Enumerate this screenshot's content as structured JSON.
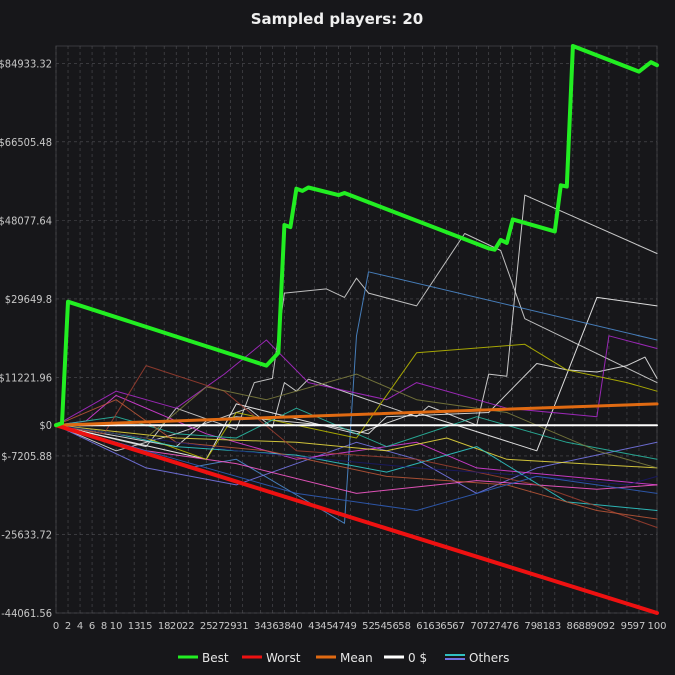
{
  "chart_data": {
    "type": "line",
    "title": "Sampled players: 20",
    "xlabel": "",
    "ylabel": "",
    "xlim": [
      0,
      100
    ],
    "ylim": [
      -44061.56,
      89000
    ],
    "grid": true,
    "legend_position": "bottom",
    "y_ticks": [
      {
        "value": 84933.32,
        "label": "$84933.32"
      },
      {
        "value": 66505.48,
        "label": "$66505.48"
      },
      {
        "value": 48077.64,
        "label": "$48077.64"
      },
      {
        "value": 29649.8,
        "label": "$29649.8"
      },
      {
        "value": 11221.96,
        "label": "$11221.96"
      },
      {
        "value": 0,
        "label": "$0"
      },
      {
        "value": -7205.88,
        "label": "$-7205.88"
      },
      {
        "value": -25633.72,
        "label": "-25633.72"
      },
      {
        "value": -44061.56,
        "label": "-44061.56"
      }
    ],
    "x_ticks": [
      0,
      2,
      4,
      6,
      8,
      10,
      13,
      15,
      18,
      20,
      22,
      25,
      27,
      29,
      31,
      34,
      36,
      38,
      40,
      43,
      45,
      47,
      49,
      52,
      54,
      56,
      58,
      61,
      63,
      65,
      67,
      70,
      72,
      74,
      76,
      79,
      81,
      83,
      86,
      88,
      90,
      92,
      95,
      97,
      100
    ],
    "legend": [
      {
        "label": "Best",
        "color": "#22ee22"
      },
      {
        "label": "Worst",
        "color": "#ee1111"
      },
      {
        "label": "Mean",
        "color": "#e06a12"
      },
      {
        "label": "0 $",
        "color": "#ffffff"
      },
      {
        "label": "Others",
        "color": "#4f8fd6"
      }
    ],
    "series": [
      {
        "role": "best",
        "color": "#22ee22",
        "width": 4,
        "points": [
          [
            0,
            0
          ],
          [
            1,
            500
          ],
          [
            2,
            29000
          ],
          [
            35,
            14000
          ],
          [
            36,
            15500
          ],
          [
            37,
            17000
          ],
          [
            38,
            47000
          ],
          [
            39,
            46500
          ],
          [
            40,
            55500
          ],
          [
            41,
            55000
          ],
          [
            42,
            55800
          ],
          [
            47,
            54000
          ],
          [
            48,
            54500
          ],
          [
            72,
            41500
          ],
          [
            73,
            41200
          ],
          [
            74,
            43500
          ],
          [
            75,
            42800
          ],
          [
            76,
            48300
          ],
          [
            83,
            45500
          ],
          [
            84,
            56300
          ],
          [
            85,
            56000
          ],
          [
            86,
            89000
          ],
          [
            97,
            83000
          ],
          [
            99,
            85200
          ],
          [
            100,
            84500
          ]
        ]
      },
      {
        "role": "worst",
        "color": "#ee1111",
        "width": 4,
        "points": [
          [
            0,
            0
          ],
          [
            100,
            -44061.56
          ]
        ]
      },
      {
        "role": "mean",
        "color": "#e06a12",
        "width": 3,
        "points": [
          [
            0,
            0
          ],
          [
            100,
            5000
          ]
        ]
      },
      {
        "role": "zero",
        "color": "#ffffff",
        "width": 2,
        "points": [
          [
            0,
            0
          ],
          [
            100,
            0
          ]
        ]
      },
      {
        "role": "other",
        "color": "#e8e8e8",
        "width": 1,
        "points": [
          [
            0,
            0
          ],
          [
            10,
            -6000
          ],
          [
            20,
            -2000
          ],
          [
            32,
            4000
          ],
          [
            36,
            -500
          ],
          [
            38,
            10000
          ],
          [
            40,
            8000
          ],
          [
            42,
            10800
          ],
          [
            60,
            2000
          ],
          [
            62,
            4500
          ],
          [
            70,
            0
          ],
          [
            72,
            12000
          ],
          [
            75,
            11500
          ],
          [
            78,
            54000
          ],
          [
            100,
            40300
          ]
        ]
      },
      {
        "role": "other",
        "color": "#dcdcdc",
        "width": 1,
        "points": [
          [
            0,
            0
          ],
          [
            15,
            -5000
          ],
          [
            20,
            4000
          ],
          [
            30,
            -1000
          ],
          [
            33,
            10000
          ],
          [
            36,
            11000
          ],
          [
            38,
            31000
          ],
          [
            45,
            32000
          ],
          [
            48,
            30000
          ],
          [
            50,
            34500
          ],
          [
            52,
            31000
          ],
          [
            60,
            28000
          ],
          [
            68,
            45000
          ],
          [
            74,
            41000
          ],
          [
            78,
            25000
          ],
          [
            100,
            10000
          ]
        ]
      },
      {
        "role": "other",
        "color": "#f0f0f0",
        "width": 1,
        "points": [
          [
            0,
            0
          ],
          [
            20,
            -5000
          ],
          [
            25,
            1000
          ],
          [
            30,
            2000
          ],
          [
            45,
            0
          ],
          [
            52,
            -2000
          ],
          [
            55,
            2000
          ],
          [
            72,
            3000
          ],
          [
            80,
            14500
          ],
          [
            85,
            13000
          ],
          [
            90,
            12500
          ],
          [
            95,
            14000
          ],
          [
            98,
            16000
          ],
          [
            100,
            11000
          ]
        ]
      },
      {
        "role": "other",
        "color": "#ffffff",
        "width": 1,
        "points": [
          [
            0,
            0
          ],
          [
            25,
            -8000
          ],
          [
            30,
            5000
          ],
          [
            50,
            -2000
          ],
          [
            60,
            3000
          ],
          [
            80,
            -6000
          ],
          [
            90,
            30000
          ],
          [
            100,
            28000
          ]
        ]
      },
      {
        "role": "other",
        "color": "#4f8fd6",
        "width": 1,
        "points": [
          [
            0,
            0
          ],
          [
            22,
            -10000
          ],
          [
            30,
            -8000
          ],
          [
            48,
            -23000
          ],
          [
            49,
            -1000
          ],
          [
            50,
            21000
          ],
          [
            52,
            36000
          ],
          [
            100,
            20000
          ]
        ]
      },
      {
        "role": "other",
        "color": "#7a7af0",
        "width": 1,
        "points": [
          [
            0,
            0
          ],
          [
            15,
            -10000
          ],
          [
            30,
            -14000
          ],
          [
            50,
            -4000
          ],
          [
            60,
            -8000
          ],
          [
            70,
            -16000
          ],
          [
            80,
            -10000
          ],
          [
            100,
            -4000
          ]
        ]
      },
      {
        "role": "other",
        "color": "#b02ad0",
        "width": 1,
        "points": [
          [
            0,
            0
          ],
          [
            10,
            8000
          ],
          [
            20,
            4000
          ],
          [
            28,
            12000
          ],
          [
            35,
            20000
          ],
          [
            42,
            10000
          ],
          [
            55,
            6000
          ],
          [
            60,
            10000
          ],
          [
            75,
            4000
          ],
          [
            90,
            2000
          ],
          [
            92,
            21000
          ],
          [
            100,
            18000
          ]
        ]
      },
      {
        "role": "other",
        "color": "#e040e0",
        "width": 1,
        "points": [
          [
            0,
            0
          ],
          [
            5,
            1000
          ],
          [
            10,
            7000
          ],
          [
            25,
            -2000
          ],
          [
            40,
            -8000
          ],
          [
            60,
            -4000
          ],
          [
            70,
            -10000
          ],
          [
            85,
            -12000
          ],
          [
            100,
            -14000
          ]
        ]
      },
      {
        "role": "other",
        "color": "#ff5ad0",
        "width": 1,
        "points": [
          [
            0,
            0
          ],
          [
            15,
            -6000
          ],
          [
            30,
            -9000
          ],
          [
            50,
            -16000
          ],
          [
            70,
            -13000
          ],
          [
            90,
            -15000
          ],
          [
            100,
            -14000
          ]
        ]
      },
      {
        "role": "other",
        "color": "#c0c000",
        "width": 1,
        "points": [
          [
            0,
            0
          ],
          [
            15,
            -3000
          ],
          [
            25,
            -8000
          ],
          [
            30,
            3000
          ],
          [
            50,
            -3000
          ],
          [
            60,
            17000
          ],
          [
            78,
            19000
          ],
          [
            85,
            13000
          ],
          [
            95,
            10000
          ],
          [
            100,
            8000
          ]
        ]
      },
      {
        "role": "other",
        "color": "#f0e040",
        "width": 1,
        "points": [
          [
            0,
            0
          ],
          [
            20,
            -3000
          ],
          [
            40,
            -4000
          ],
          [
            55,
            -6000
          ],
          [
            65,
            -3000
          ],
          [
            75,
            -8000
          ],
          [
            100,
            -10000
          ]
        ]
      },
      {
        "role": "other",
        "color": "#30d0d0",
        "width": 1,
        "points": [
          [
            0,
            0
          ],
          [
            10,
            -2000
          ],
          [
            20,
            -5000
          ],
          [
            40,
            -7000
          ],
          [
            55,
            -11000
          ],
          [
            70,
            -5000
          ],
          [
            85,
            -18000
          ],
          [
            100,
            -20000
          ]
        ]
      },
      {
        "role": "other",
        "color": "#2abfa8",
        "width": 1,
        "points": [
          [
            0,
            0
          ],
          [
            10,
            2000
          ],
          [
            20,
            -2000
          ],
          [
            30,
            -3000
          ],
          [
            40,
            4000
          ],
          [
            55,
            -5000
          ],
          [
            70,
            2000
          ],
          [
            85,
            -4000
          ],
          [
            100,
            -8000
          ]
        ]
      },
      {
        "role": "other",
        "color": "#a04030",
        "width": 1,
        "points": [
          [
            0,
            0
          ],
          [
            8,
            -2000
          ],
          [
            15,
            14000
          ],
          [
            28,
            8000
          ],
          [
            40,
            -6000
          ],
          [
            60,
            -8000
          ],
          [
            80,
            -14000
          ],
          [
            100,
            -24000
          ]
        ]
      },
      {
        "role": "other",
        "color": "#c05838",
        "width": 1,
        "points": [
          [
            0,
            0
          ],
          [
            10,
            6000
          ],
          [
            20,
            -4000
          ],
          [
            35,
            -6000
          ],
          [
            55,
            -12000
          ],
          [
            75,
            -14000
          ],
          [
            90,
            -20000
          ],
          [
            100,
            -22000
          ]
        ]
      },
      {
        "role": "other",
        "color": "#808040",
        "width": 1,
        "points": [
          [
            0,
            0
          ],
          [
            15,
            -3000
          ],
          [
            25,
            9000
          ],
          [
            35,
            6000
          ],
          [
            50,
            12000
          ],
          [
            60,
            6000
          ],
          [
            75,
            3000
          ],
          [
            90,
            -6000
          ],
          [
            100,
            -10000
          ]
        ]
      },
      {
        "role": "other",
        "color": "#1a1a6a",
        "width": 1,
        "points": [
          [
            0,
            0
          ],
          [
            30,
            -6000
          ],
          [
            60,
            -10000
          ],
          [
            80,
            -12000
          ],
          [
            95,
            -14000
          ],
          [
            100,
            -12000
          ]
        ]
      },
      {
        "role": "other",
        "color": "#3060c0",
        "width": 1,
        "points": [
          [
            0,
            0
          ],
          [
            20,
            -8000
          ],
          [
            40,
            -16000
          ],
          [
            60,
            -20000
          ],
          [
            80,
            -12000
          ],
          [
            100,
            -16000
          ]
        ]
      }
    ]
  }
}
